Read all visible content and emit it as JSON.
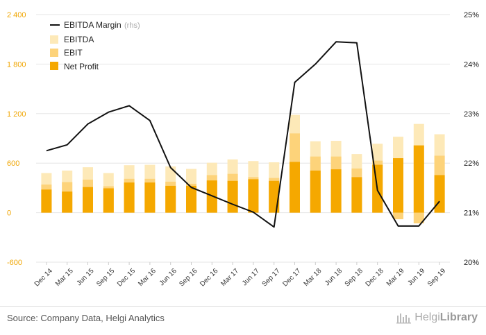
{
  "chart_data": {
    "type": "bar",
    "title": "",
    "categories": [
      "Dec 14",
      "Mar 15",
      "Jun 15",
      "Sep 15",
      "Dec 15",
      "Mar 16",
      "Jun 16",
      "Sep 16",
      "Dec 16",
      "Mar 17",
      "Jun 17",
      "Sep 17",
      "Dec 17",
      "Mar 18",
      "Jun 18",
      "Sep 18",
      "Dec 18",
      "Mar 19",
      "Jun 19",
      "Sep 19"
    ],
    "series": [
      {
        "name": "EBITDA",
        "kind": "bar",
        "axis": "left",
        "color": "#fde9b8",
        "values": [
          480,
          510,
          550,
          480,
          575,
          580,
          560,
          530,
          605,
          645,
          625,
          610,
          1185,
          865,
          870,
          710,
          835,
          920,
          1075,
          950
        ]
      },
      {
        "name": "EBIT",
        "kind": "bar",
        "axis": "left",
        "color": "#fdd37a",
        "values": [
          340,
          370,
          400,
          320,
          410,
          410,
          375,
          350,
          455,
          470,
          430,
          420,
          960,
          680,
          680,
          535,
          630,
          -80,
          -130,
          690
        ]
      },
      {
        "name": "Net Profit",
        "kind": "bar",
        "axis": "left",
        "color": "#f5a800",
        "values": [
          280,
          255,
          310,
          295,
          365,
          365,
          325,
          325,
          390,
          385,
          405,
          385,
          615,
          510,
          525,
          430,
          580,
          660,
          815,
          455
        ]
      },
      {
        "name": "EBITDA Margin",
        "kind": "line",
        "axis": "right",
        "unit": "rhs",
        "color": "#111111",
        "values": [
          22.25,
          22.37,
          22.79,
          23.03,
          23.16,
          22.86,
          21.91,
          21.51,
          21.34,
          21.17,
          21.01,
          20.71,
          23.63,
          24.0,
          24.45,
          24.43,
          21.45,
          20.73,
          20.73,
          21.23
        ]
      }
    ],
    "y_left": {
      "min": -600,
      "max": 2400,
      "ticks": [
        "-600",
        "0",
        "600",
        "1 200",
        "1 800",
        "2 400"
      ],
      "tick_values": [
        -600,
        0,
        600,
        1200,
        1800,
        2400
      ]
    },
    "y_right": {
      "min": 20,
      "max": 25,
      "ticks": [
        "20%",
        "21%",
        "22%",
        "23%",
        "24%",
        "25%"
      ],
      "tick_values": [
        20,
        21,
        22,
        23,
        24,
        25
      ]
    },
    "legend": {
      "position": "top-left",
      "line_label": "EBITDA Margin",
      "line_suffix": "(rhs)",
      "items": [
        "EBITDA",
        "EBIT",
        "Net Profit"
      ]
    },
    "grid": true
  },
  "footer": {
    "source": "Source: Company Data, Helgi Analytics",
    "logo_light": "Helgi",
    "logo_bold": "Library"
  }
}
